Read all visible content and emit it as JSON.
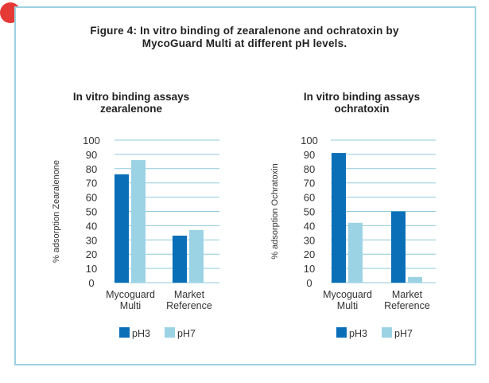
{
  "figure_title_line1": "Figure 4: In vitro binding of zearalenone and ochratoxin by",
  "figure_title_line2": "MycoGuard Multi at different pH levels.",
  "colors": {
    "ph3": "#0a6fb7",
    "ph7": "#9bd3e5",
    "grid": "#8fcbdc",
    "border": "#9ed1e0",
    "red_dot": "#e53935"
  },
  "chart_data": [
    {
      "type": "bar",
      "title": [
        "In vitro binding assays",
        "zearalenone"
      ],
      "ylabel": "% adsorption Zearalenone",
      "xlabel": "",
      "ylim": [
        0,
        100
      ],
      "yticks": [
        0,
        10,
        20,
        30,
        40,
        50,
        60,
        70,
        80,
        90,
        100
      ],
      "grid": true,
      "categories": [
        [
          "Mycoguard",
          "Multi"
        ],
        [
          "Market",
          "Reference"
        ]
      ],
      "series": [
        {
          "name": "pH3",
          "values": [
            76,
            33
          ]
        },
        {
          "name": "pH7",
          "values": [
            86,
            37
          ]
        }
      ],
      "legend_position": "bottom"
    },
    {
      "type": "bar",
      "title": [
        "In vitro binding assays",
        "ochratoxin"
      ],
      "ylabel": "% adsorption Ochratoxin",
      "xlabel": "",
      "ylim": [
        0,
        100
      ],
      "yticks": [
        0,
        10,
        20,
        30,
        40,
        50,
        60,
        70,
        80,
        90,
        100
      ],
      "grid": true,
      "categories": [
        [
          "Mycoguard",
          "Multi"
        ],
        [
          "Market",
          "Reference"
        ]
      ],
      "series": [
        {
          "name": "pH3",
          "values": [
            91,
            50
          ]
        },
        {
          "name": "pH7",
          "values": [
            42,
            4
          ]
        }
      ],
      "legend_position": "bottom"
    }
  ]
}
